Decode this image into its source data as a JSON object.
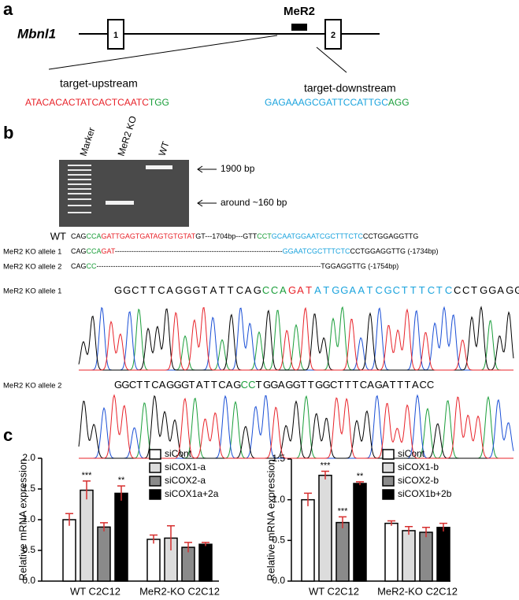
{
  "panel_a": {
    "label": "a",
    "gene": "Mbnl1",
    "exons": [
      "1",
      "2"
    ],
    "element": "MeR2",
    "upstream": {
      "label": "target-upstream",
      "sequence": [
        {
          "text": "ATACACACTATCACTCAATC",
          "color": "#e8232a"
        },
        {
          "text": "TGG",
          "color": "#1a9e3a"
        }
      ]
    },
    "downstream": {
      "label": "target-downstream",
      "sequence": [
        {
          "text": "GAGAAAGCGATTCCATTGC",
          "color": "#1aa3dd"
        },
        {
          "text": "AGG",
          "color": "#1a9e3a"
        }
      ]
    }
  },
  "panel_b": {
    "label": "b",
    "gel": {
      "lanes": [
        "Marker",
        "MeR2 KO",
        "WT"
      ],
      "markers": [
        "1900 bp",
        "around ~160 bp"
      ]
    },
    "alignment": [
      {
        "name": "WT",
        "segments": [
          {
            "text": "CAG",
            "color": "#000000"
          },
          {
            "text": "CCA",
            "color": "#1a9e3a"
          },
          {
            "text": "GATTGAGTGATAGTGTGTAT",
            "color": "#e8232a"
          },
          {
            "text": "GT---1704bp---GTT",
            "color": "#000000"
          },
          {
            "text": "CCT",
            "color": "#1a9e3a"
          },
          {
            "text": "GCAATGGAATCGCTTTCTC",
            "color": "#1aa3dd"
          },
          {
            "text": "CCTGGAGGTTG",
            "color": "#000000"
          }
        ]
      },
      {
        "name": "MeR2 KO allele 1",
        "segments": [
          {
            "text": "CAG",
            "color": "#000000"
          },
          {
            "text": "CCA",
            "color": "#1a9e3a"
          },
          {
            "text": "GAT",
            "color": "#e8232a"
          },
          {
            "text": "-----------------------------------------------------------------------",
            "color": "#000000"
          },
          {
            "text": "GGAATCGCTTTCTC",
            "color": "#1aa3dd"
          },
          {
            "text": "CCTGGAGGTTG (-1734bp)",
            "color": "#000000"
          }
        ]
      },
      {
        "name": "MeR2 KO allele 2",
        "segments": [
          {
            "text": "CAG",
            "color": "#000000"
          },
          {
            "text": "CC",
            "color": "#1a9e3a"
          },
          {
            "text": "-----------------------------------------------------------------------------------------------TGGAGGTTG (-1754bp)",
            "color": "#000000"
          }
        ]
      }
    ],
    "chromatograms": [
      {
        "name": "MeR2 KO allele 1",
        "segments": [
          {
            "text": "GGCTTCAGGGTATTCAG",
            "color": "#000000"
          },
          {
            "text": "CCA",
            "color": "#1a9e3a"
          },
          {
            "text": "GAT",
            "color": "#e8232a"
          },
          {
            "text": "ATGGAATCGCTTTCTC",
            "color": "#1aa3dd"
          },
          {
            "text": "CCTGGAGG",
            "color": "#000000"
          }
        ]
      },
      {
        "name": "MeR2 KO allele 2",
        "segments": [
          {
            "text": "GGCTTCAGGGTATTCAG",
            "color": "#000000"
          },
          {
            "text": "CC",
            "color": "#1a9e3a"
          },
          {
            "text": "TGGAGGTTGGCTTTCAGATTTACC",
            "color": "#000000"
          }
        ]
      }
    ]
  },
  "panel_c": {
    "label": "c"
  },
  "chart_data": [
    {
      "type": "bar",
      "ylabel": "Relative mRNA expression",
      "categories": [
        "WT C2C12",
        "MeR2-KO C2C12"
      ],
      "ylim": [
        0,
        2.0
      ],
      "yticks": [
        {
          "value": 0,
          "label": "0.0"
        },
        0.5,
        {
          "value": 1,
          "label": "1.0"
        },
        1.5,
        {
          "value": 2,
          "label": "2.0"
        }
      ],
      "error_color": "#d62f2f",
      "series": [
        {
          "name": "siCont",
          "color": "#ffffff",
          "values": [
            1.0,
            0.68
          ],
          "errors": [
            0.1,
            0.07
          ],
          "annotations": [
            null,
            null
          ]
        },
        {
          "name": "siCOX1-a",
          "color": "#dcdcdc",
          "values": [
            1.48,
            0.7
          ],
          "errors": [
            0.15,
            0.2
          ],
          "annotations": [
            "***",
            null
          ]
        },
        {
          "name": "siCOX2-a",
          "color": "#8a8a8a",
          "values": [
            0.88,
            0.55
          ],
          "errors": [
            0.07,
            0.08
          ],
          "annotations": [
            null,
            null
          ]
        },
        {
          "name": "siCOX1a+2a",
          "color": "#000000",
          "values": [
            1.43,
            0.6
          ],
          "errors": [
            0.12,
            0.03
          ],
          "annotations": [
            "**",
            null
          ]
        }
      ]
    },
    {
      "type": "bar",
      "ylabel": "Relative mRNA expression",
      "categories": [
        "WT C2C12",
        "MeR2-KO C2C12"
      ],
      "ylim": [
        0,
        1.5
      ],
      "yticks": [
        {
          "value": 0,
          "label": "0.0"
        },
        0.5,
        {
          "value": 1,
          "label": "1.0"
        },
        1.5
      ],
      "error_color": "#d62f2f",
      "series": [
        {
          "name": "siCont",
          "color": "#ffffff",
          "values": [
            1.0,
            0.71
          ],
          "errors": [
            0.08,
            0.03
          ],
          "annotations": [
            null,
            null
          ]
        },
        {
          "name": "siCOX1-b",
          "color": "#dcdcdc",
          "values": [
            1.3,
            0.62
          ],
          "errors": [
            0.05,
            0.05
          ],
          "annotations": [
            "***",
            null
          ]
        },
        {
          "name": "siCOX2-b",
          "color": "#8a8a8a",
          "values": [
            0.72,
            0.6
          ],
          "errors": [
            0.07,
            0.06
          ],
          "annotations": [
            "***",
            null
          ]
        },
        {
          "name": "siCOX1b+2b",
          "color": "#000000",
          "values": [
            1.2,
            0.66
          ],
          "errors": [
            0.02,
            0.05
          ],
          "annotations": [
            "**",
            null
          ]
        }
      ]
    }
  ]
}
